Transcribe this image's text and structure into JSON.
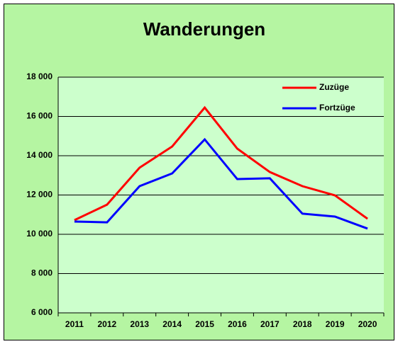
{
  "chart_data": {
    "type": "line",
    "title": "Wanderungen",
    "categories": [
      "2011",
      "2012",
      "2013",
      "2014",
      "2015",
      "2016",
      "2017",
      "2018",
      "2019",
      "2020"
    ],
    "series": [
      {
        "name": "Zuzüge",
        "color": "#ff0000",
        "values": [
          10720,
          11510,
          13390,
          14470,
          16450,
          14360,
          13170,
          12450,
          11980,
          10790
        ]
      },
      {
        "name": "Fortzüge",
        "color": "#0000ff",
        "values": [
          10650,
          10610,
          12450,
          13100,
          14830,
          12810,
          12850,
          11050,
          10900,
          10290
        ]
      }
    ],
    "ylim": [
      6000,
      18000
    ],
    "yticks": [
      {
        "value": 6000,
        "label": "6 000"
      },
      {
        "value": 8000,
        "label": "8 000"
      },
      {
        "value": 10000,
        "label": "10 000"
      },
      {
        "value": 12000,
        "label": "12 000"
      },
      {
        "value": 14000,
        "label": "14 000"
      },
      {
        "value": 16000,
        "label": "16 000"
      },
      {
        "value": 18000,
        "label": "18 000"
      }
    ],
    "grid": true,
    "legend": "upper right"
  }
}
